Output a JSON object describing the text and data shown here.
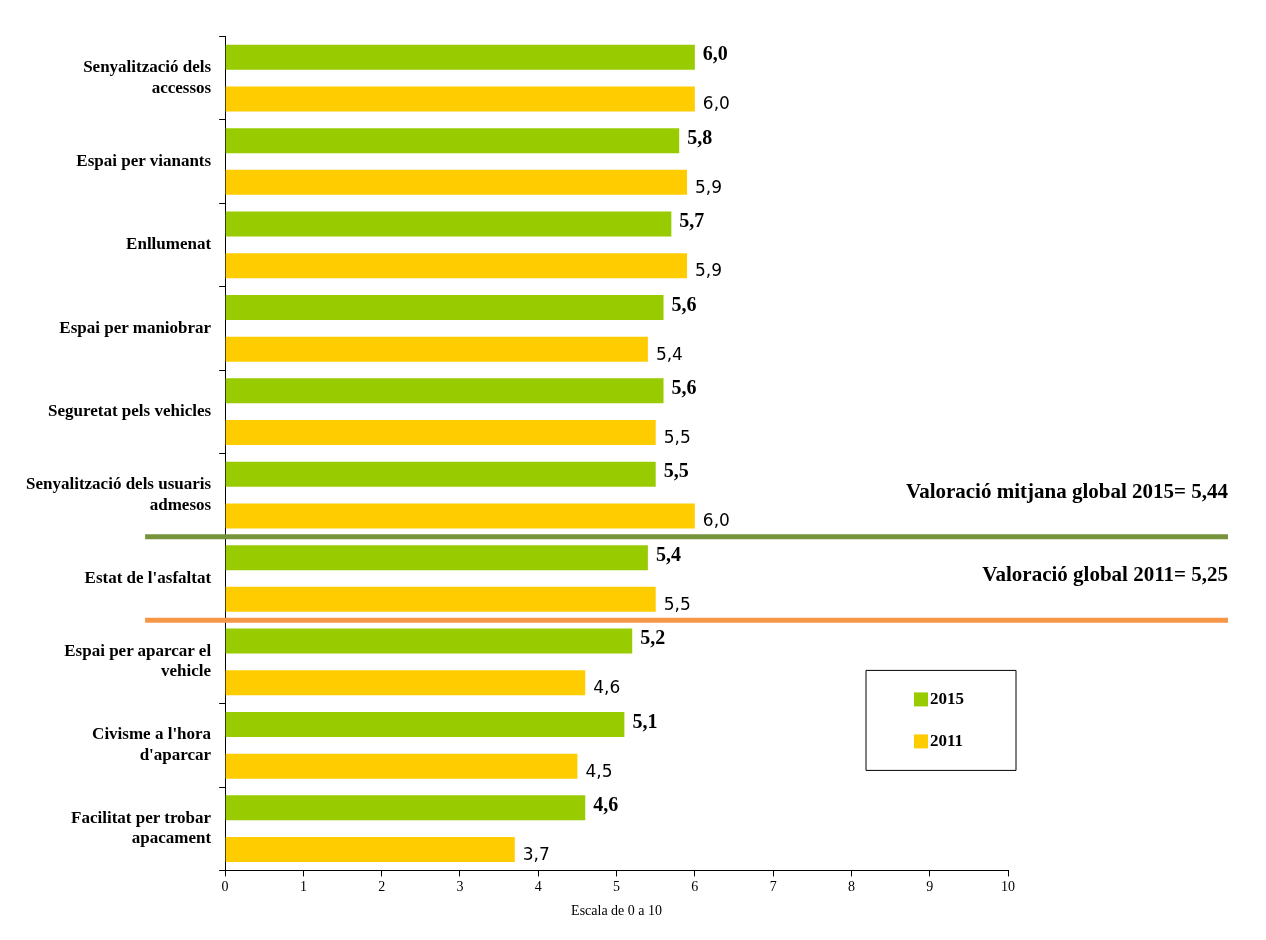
{
  "chart_data": {
    "type": "bar",
    "orientation": "horizontal",
    "xlabel": "Escala de 0 a 10",
    "categories": [
      "Senyalització dels accessos",
      "Espai per vianants",
      "Enllumenat",
      "Espai per maniobrar",
      "Seguretat pels vehicles",
      "Senyalització dels usuaris admesos",
      "Estat de l'asfaltat",
      "Espai per aparcar el vehicle",
      "Civisme a l'hora d'aparcar",
      "Facilitat per trobar apacament"
    ],
    "series": [
      {
        "name": "2015",
        "color": "#99cc00",
        "values": [
          6.0,
          5.8,
          5.7,
          5.6,
          5.6,
          5.5,
          5.4,
          5.2,
          5.1,
          4.6
        ],
        "value_labels": [
          "6,0",
          "5,8",
          "5,7",
          "5,6",
          "5,6",
          "5,5",
          "5,4",
          "5,2",
          "5,1",
          "4,6"
        ]
      },
      {
        "name": "2011",
        "color": "#ffcc00",
        "values": [
          6.0,
          5.9,
          5.9,
          5.4,
          5.5,
          6.0,
          5.5,
          4.6,
          4.5,
          3.7
        ],
        "value_labels": [
          "6,0",
          "5,9",
          "5,9",
          "5,4",
          "5,5",
          "6,0",
          "5,5",
          "4,6",
          "4,5",
          "3,7"
        ]
      }
    ],
    "xlim": [
      0,
      10
    ],
    "xticks": [
      0,
      1,
      2,
      3,
      4,
      5,
      6,
      7,
      8,
      9,
      10
    ],
    "ref_lines": [
      {
        "axis": "y",
        "value": "Senyalització dels usuaris admesos",
        "label": "Valoració mitjana global 2015= 5,44",
        "color": "#77933c"
      },
      {
        "axis": "y",
        "value": "Estat de l'asfaltat",
        "label": "Valoració global 2011= 5,25",
        "color": "#f79646"
      }
    ],
    "grid": false,
    "legend": "bottom right"
  }
}
